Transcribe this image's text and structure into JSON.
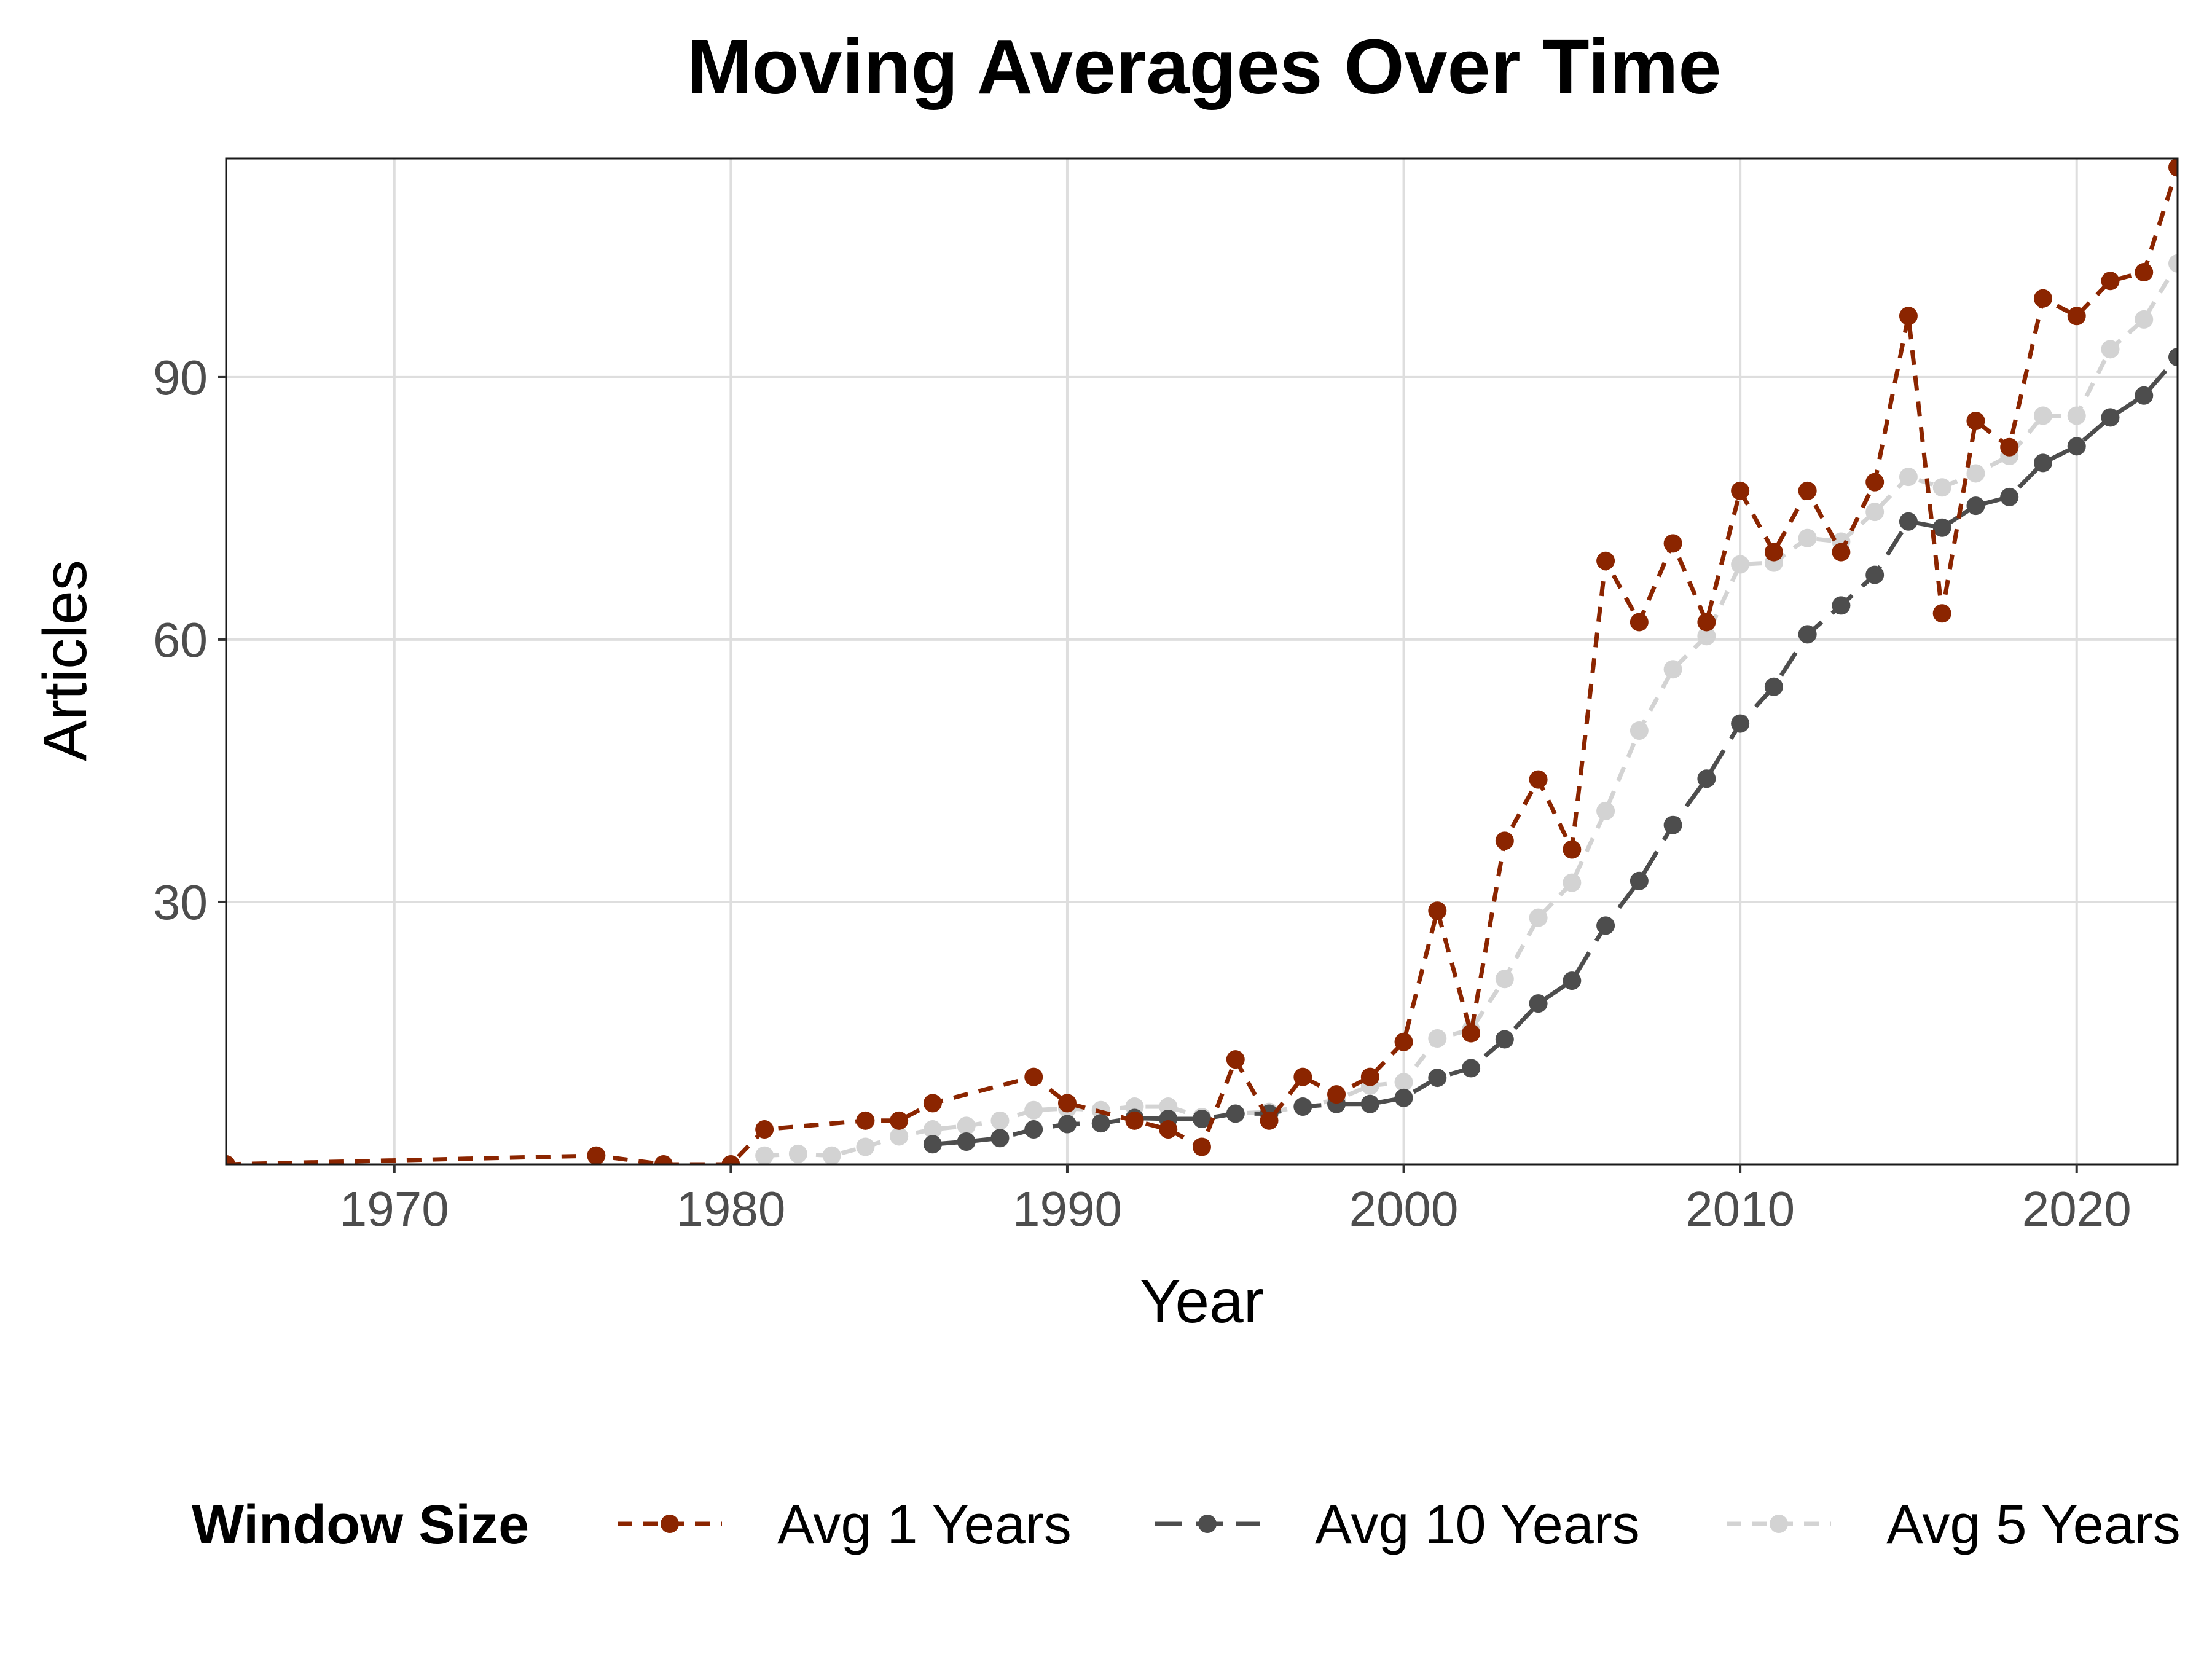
{
  "chart_data": {
    "type": "line",
    "title": "Moving Averages Over Time",
    "xlabel": "Year",
    "ylabel": "Articles",
    "xlim": [
      1965,
      2023
    ],
    "ylim": [
      0,
      115
    ],
    "xticks": [
      1970,
      1980,
      1990,
      2000,
      2010,
      2020
    ],
    "yticks": [
      30,
      60,
      90
    ],
    "grid": true,
    "legend": {
      "title": "Window Size",
      "position": "bottom"
    },
    "series": [
      {
        "name": "Avg 1 Years",
        "color": "#8b2500",
        "dash": "dashed",
        "x": [
          1965,
          1976,
          1978,
          1980,
          1981,
          1984,
          1985,
          1986,
          1989,
          1990,
          1992,
          1993,
          1994,
          1995,
          1996,
          1997,
          1998,
          1999,
          2000,
          2001,
          2002,
          2003,
          2004,
          2005,
          2006,
          2007,
          2008,
          2009,
          2010,
          2011,
          2012,
          2013,
          2014,
          2015,
          2016,
          2017,
          2018,
          2019,
          2020,
          2021,
          2022,
          2023
        ],
        "y": [
          0,
          1,
          0,
          0,
          4,
          5,
          5,
          7,
          10,
          7,
          5,
          4,
          2,
          12,
          5,
          10,
          8,
          10,
          14,
          29,
          15,
          37,
          44,
          36,
          69,
          62,
          71,
          62,
          77,
          70,
          77,
          70,
          78,
          97,
          63,
          85,
          82,
          99,
          97,
          101,
          102,
          114
        ]
      },
      {
        "name": "Avg 10 Years",
        "color": "#4d4d4d",
        "dash": "longdash",
        "x": [
          1986,
          1987,
          1988,
          1989,
          1990,
          1991,
          1992,
          1993,
          1994,
          1995,
          1996,
          1997,
          1998,
          1999,
          2000,
          2001,
          2002,
          2003,
          2004,
          2005,
          2006,
          2007,
          2008,
          2009,
          2010,
          2011,
          2012,
          2013,
          2014,
          2015,
          2016,
          2017,
          2018,
          2019,
          2020,
          2021,
          2022,
          2023
        ],
        "y": [
          2.3,
          2.6,
          3,
          4,
          4.6,
          4.7,
          5.3,
          5.2,
          5.2,
          5.8,
          5.8,
          6.6,
          6.9,
          6.9,
          7.6,
          9.9,
          11,
          14.3,
          18.4,
          21,
          27.3,
          32.4,
          38.8,
          44.1,
          50.4,
          54.6,
          60.6,
          63.9,
          67.4,
          73.5,
          72.8,
          75.3,
          76.3,
          80.2,
          82.1,
          85.4,
          87.9,
          92.3
        ]
      },
      {
        "name": "Avg 5 Years",
        "color": "#d3d3d3",
        "dash": "dashed",
        "x": [
          1981,
          1982,
          1983,
          1984,
          1985,
          1986,
          1987,
          1988,
          1989,
          1990,
          1991,
          1992,
          1993,
          1994,
          1995,
          1996,
          1997,
          1998,
          1999,
          2000,
          2001,
          2002,
          2003,
          2004,
          2005,
          2006,
          2007,
          2008,
          2009,
          2010,
          2011,
          2012,
          2013,
          2014,
          2015,
          2016,
          2017,
          2018,
          2019,
          2020,
          2021,
          2022,
          2023
        ],
        "y": [
          1,
          1.2,
          1,
          2,
          3.2,
          4,
          4.4,
          5,
          6.2,
          6.4,
          6.2,
          6.6,
          6.6,
          5.4,
          5.8,
          6,
          6.6,
          7.4,
          9,
          9.4,
          14.4,
          15.4,
          21.2,
          28.2,
          32.2,
          40.4,
          49.6,
          56.6,
          60.4,
          68.6,
          68.8,
          71.6,
          71.2,
          74.6,
          78.6,
          77.4,
          79,
          81,
          85.6,
          85.6,
          93.2,
          96.6,
          103
        ]
      }
    ]
  }
}
